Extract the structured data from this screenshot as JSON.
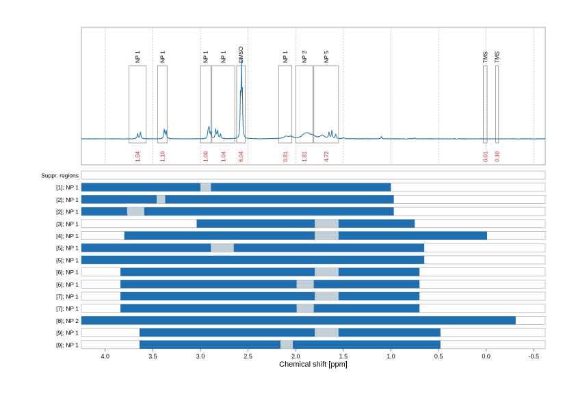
{
  "chart_data": [
    {
      "type": "line",
      "title": "",
      "xlabel": "Chemical shift [ppm]",
      "xlim": [
        4.25,
        -0.62
      ],
      "x_reversed": true,
      "x_gridlines": [
        4.0,
        3.5,
        3.0,
        2.5,
        2.0,
        1.5,
        1.0,
        0.5,
        0.0,
        -0.5
      ],
      "grid": true,
      "series": [
        {
          "type": "spectrum",
          "color": "#1f6fb0",
          "baseline": 0,
          "ymax": 1.0,
          "peaks": [
            {
              "x": 3.66,
              "h": 0.07
            },
            {
              "x": 3.63,
              "h": 0.09
            },
            {
              "x": 3.38,
              "h": 0.13
            },
            {
              "x": 3.36,
              "h": 0.11
            },
            {
              "x": 2.92,
              "h": 0.09
            },
            {
              "x": 2.91,
              "h": 0.15
            },
            {
              "x": 2.89,
              "h": 0.09
            },
            {
              "x": 2.84,
              "h": 0.13
            },
            {
              "x": 2.82,
              "h": 0.11
            },
            {
              "x": 2.79,
              "h": 0.06
            },
            {
              "x": 2.58,
              "h": 0.53
            },
            {
              "x": 2.57,
              "h": 0.95
            },
            {
              "x": 2.56,
              "h": 0.6
            },
            {
              "x": 2.1,
              "h": 0.03
            },
            {
              "x": 2.05,
              "h": 0.025
            },
            {
              "x": 1.91,
              "h": 0.05
            },
            {
              "x": 1.87,
              "h": 0.055
            },
            {
              "x": 1.82,
              "h": 0.035
            },
            {
              "x": 1.72,
              "h": 0.045
            },
            {
              "x": 1.65,
              "h": 0.08
            },
            {
              "x": 1.62,
              "h": 0.11
            },
            {
              "x": 1.58,
              "h": 0.06
            },
            {
              "x": 1.5,
              "h": 0.02
            },
            {
              "x": 1.1,
              "h": 0.035
            },
            {
              "x": 0.75,
              "h": 0.015
            }
          ]
        }
      ],
      "regions": [
        {
          "label": "NP 1",
          "from": 3.75,
          "to": 3.57,
          "integral": "1.04",
          "row": 0
        },
        {
          "label": "NP 1",
          "from": 3.45,
          "to": 3.35,
          "integral": "1.10",
          "row": 0
        },
        {
          "label": "NP 1",
          "from": 3.0,
          "to": 2.89,
          "integral": "1.00",
          "row": 0
        },
        {
          "label": "NP 1",
          "from": 2.88,
          "to": 2.64,
          "integral": "1.04",
          "row": 0
        },
        {
          "label": "DMSO",
          "from": 2.62,
          "to": 2.53,
          "integral": "6.04",
          "row": 0
        },
        {
          "label": "NP 1",
          "from": 2.18,
          "to": 2.04,
          "integral": "0.81",
          "row": 0
        },
        {
          "label": "NP 2",
          "from": 2.0,
          "to": 1.82,
          "integral": "1.81",
          "row": 0
        },
        {
          "label": "NP 5",
          "from": 1.81,
          "to": 1.55,
          "integral": "4.72",
          "row": 0
        },
        {
          "label": "TMS",
          "from": 0.03,
          "to": -0.01,
          "integral": "0.01",
          "row": 0
        },
        {
          "label": "TMS",
          "from": -0.1,
          "to": -0.13,
          "integral": "0.10",
          "row": 0
        }
      ]
    },
    {
      "type": "bar",
      "orientation": "horizontal",
      "xlabel": "Chemical shift [ppm]",
      "xlim": [
        4.25,
        -0.62
      ],
      "x_reversed": true,
      "x_ticks": [
        "4.0",
        "3.5",
        "3.0",
        "2.5",
        "2.0",
        "1.5",
        "1.0",
        "0.5",
        "0.0",
        "-0.5"
      ],
      "x_tick_values": [
        4.0,
        3.5,
        3.0,
        2.5,
        2.0,
        1.5,
        1.0,
        0.5,
        0.0,
        -0.5
      ],
      "colors": {
        "range": "#1f6fb0",
        "signal": "#c3cfd6"
      },
      "rows": [
        {
          "label": "Suppr. regions",
          "range": null,
          "signal": null
        },
        {
          "label": "[1]; NP 1",
          "range": [
            4.25,
            1.0
          ],
          "signal": [
            3.0,
            2.89
          ]
        },
        {
          "label": "[2]; NP 1",
          "range": [
            4.25,
            0.97
          ],
          "signal": [
            3.46,
            3.37
          ]
        },
        {
          "label": "[2]; NP 1",
          "range": [
            4.25,
            0.97
          ],
          "signal": [
            3.77,
            3.59
          ]
        },
        {
          "label": "[3]; NP 1",
          "range": [
            3.04,
            0.75
          ],
          "signal": [
            1.8,
            1.55
          ]
        },
        {
          "label": "[4]; NP 1",
          "range": [
            3.8,
            -0.01
          ],
          "signal": [
            1.8,
            1.55
          ]
        },
        {
          "label": "[5]; NP 1",
          "range": [
            4.25,
            0.65
          ],
          "signal": [
            2.89,
            2.65
          ]
        },
        {
          "label": "[5]; NP 1",
          "range": [
            4.25,
            0.65
          ],
          "signal": null
        },
        {
          "label": "[6]; NP 1",
          "range": [
            3.84,
            0.7
          ],
          "signal": [
            1.8,
            1.55
          ]
        },
        {
          "label": "[6]; NP 1",
          "range": [
            3.84,
            0.7
          ],
          "signal": [
            1.99,
            1.81
          ]
        },
        {
          "label": "[7]; NP 1",
          "range": [
            3.84,
            0.7
          ],
          "signal": [
            1.8,
            1.55
          ]
        },
        {
          "label": "[7]; NP 1",
          "range": [
            3.84,
            0.7
          ],
          "signal": [
            1.99,
            1.81
          ]
        },
        {
          "label": "[8]; NP 2",
          "range": [
            4.25,
            -0.31
          ],
          "signal": null
        },
        {
          "label": "[9]; NP 1",
          "range": [
            3.64,
            0.48
          ],
          "signal": [
            1.8,
            1.55
          ]
        },
        {
          "label": "[9]; NP 1",
          "range": [
            3.64,
            0.48
          ],
          "signal": [
            2.16,
            2.03
          ]
        }
      ]
    }
  ]
}
